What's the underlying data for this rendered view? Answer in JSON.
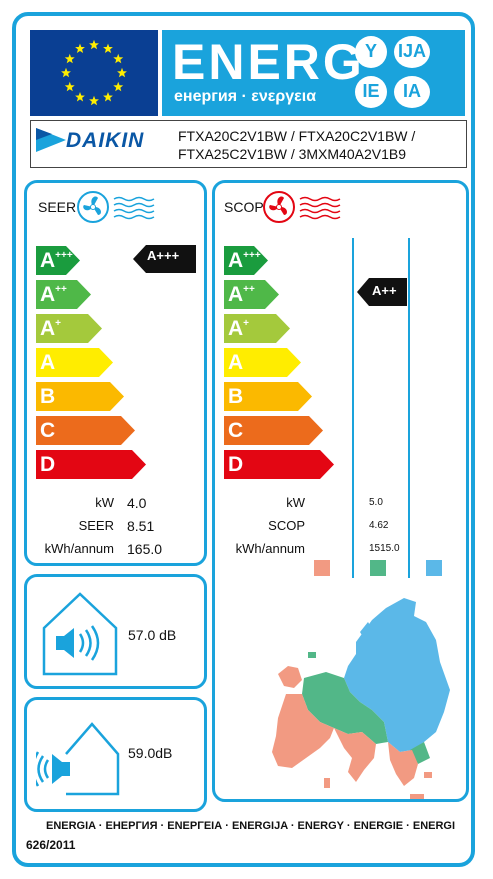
{
  "header": {
    "brand_big": "ENERG",
    "brand_sub": "енергия · ενεργεια",
    "lang_badges": [
      "Y",
      "IJA",
      "IE",
      "IA"
    ]
  },
  "supplier": {
    "logo_text": "DAIKIN",
    "models_line1": "FTXA20C2V1BW / FTXA20C2V1BW /",
    "models_line2": "FTXA25C2V1BW / 3MXM40A2V1B9"
  },
  "classes": [
    "A+++",
    "A++",
    "A+",
    "A",
    "B",
    "C",
    "D"
  ],
  "class_colors": [
    "#1a9c3e",
    "#4fb848",
    "#a4c93c",
    "#ffed00",
    "#fbb900",
    "#ec6b1c",
    "#e30613"
  ],
  "seer": {
    "title": "SEER",
    "rating": "A+++",
    "rows": [
      {
        "label": "kW",
        "value": "4.0"
      },
      {
        "label": "SEER",
        "value": "8.51"
      },
      {
        "label": "kWh/annum",
        "value": "165.0"
      }
    ]
  },
  "scop": {
    "title": "SCOP",
    "rating": "A++",
    "rows": [
      {
        "label": "kW",
        "value": "5.0"
      },
      {
        "label": "SCOP",
        "value": "4.62"
      },
      {
        "label": "kWh/annum",
        "value": "1515.0"
      }
    ],
    "climate_colors": [
      "#f29a82",
      "#52b788",
      "#5bb8e8"
    ]
  },
  "noise_indoor": {
    "value": "57.0",
    "unit": "dB"
  },
  "noise_outdoor": {
    "value": "59.0",
    "unit": "dB"
  },
  "footer": {
    "languages": "ENERGIA · ЕНЕРГИЯ · ΕΝΕΡΓΕΙΑ · ENERGIJA · ENERGY · ENERGIE · ENERGI",
    "regulation": "626/2011"
  }
}
